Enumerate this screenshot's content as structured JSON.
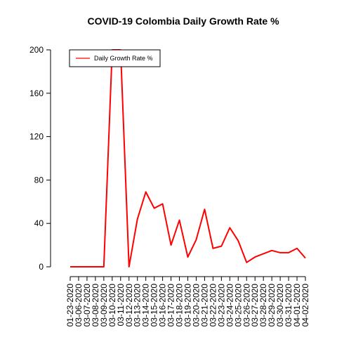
{
  "chart_data": {
    "type": "line",
    "title": "COVID-19 Colombia Daily Growth Rate %",
    "xlabel": "",
    "ylabel": "",
    "categories": [
      "01-23-2020",
      "03-06-2020",
      "03-07-2020",
      "03-08-2020",
      "03-09-2020",
      "03-10-2020",
      "03-11-2020",
      "03-12-2020",
      "03-13-2020",
      "03-14-2020",
      "03-15-2020",
      "03-16-2020",
      "03-17-2020",
      "03-18-2020",
      "03-19-2020",
      "03-20-2020",
      "03-21-2020",
      "03-22-2020",
      "03-23-2020",
      "03-24-2020",
      "03-25-2020",
      "03-26-2020",
      "03-27-2020",
      "03-28-2020",
      "03-29-2020",
      "03-30-2020",
      "03-31-2020",
      "04-01-2020",
      "04-02-2020"
    ],
    "series": [
      {
        "name": "Daily Growth Rate %",
        "color": "#ff0000",
        "values": [
          0,
          0,
          0,
          0,
          0,
          200,
          200,
          0,
          44,
          69,
          54,
          58,
          20,
          43,
          9,
          25,
          53,
          17,
          19,
          36,
          24,
          4,
          9,
          12,
          15,
          13,
          13,
          17,
          8
        ]
      }
    ],
    "ylim": [
      0,
      200
    ],
    "yticks": [
      0,
      40,
      80,
      120,
      160,
      200
    ],
    "grid": false,
    "legend": "top-left"
  }
}
